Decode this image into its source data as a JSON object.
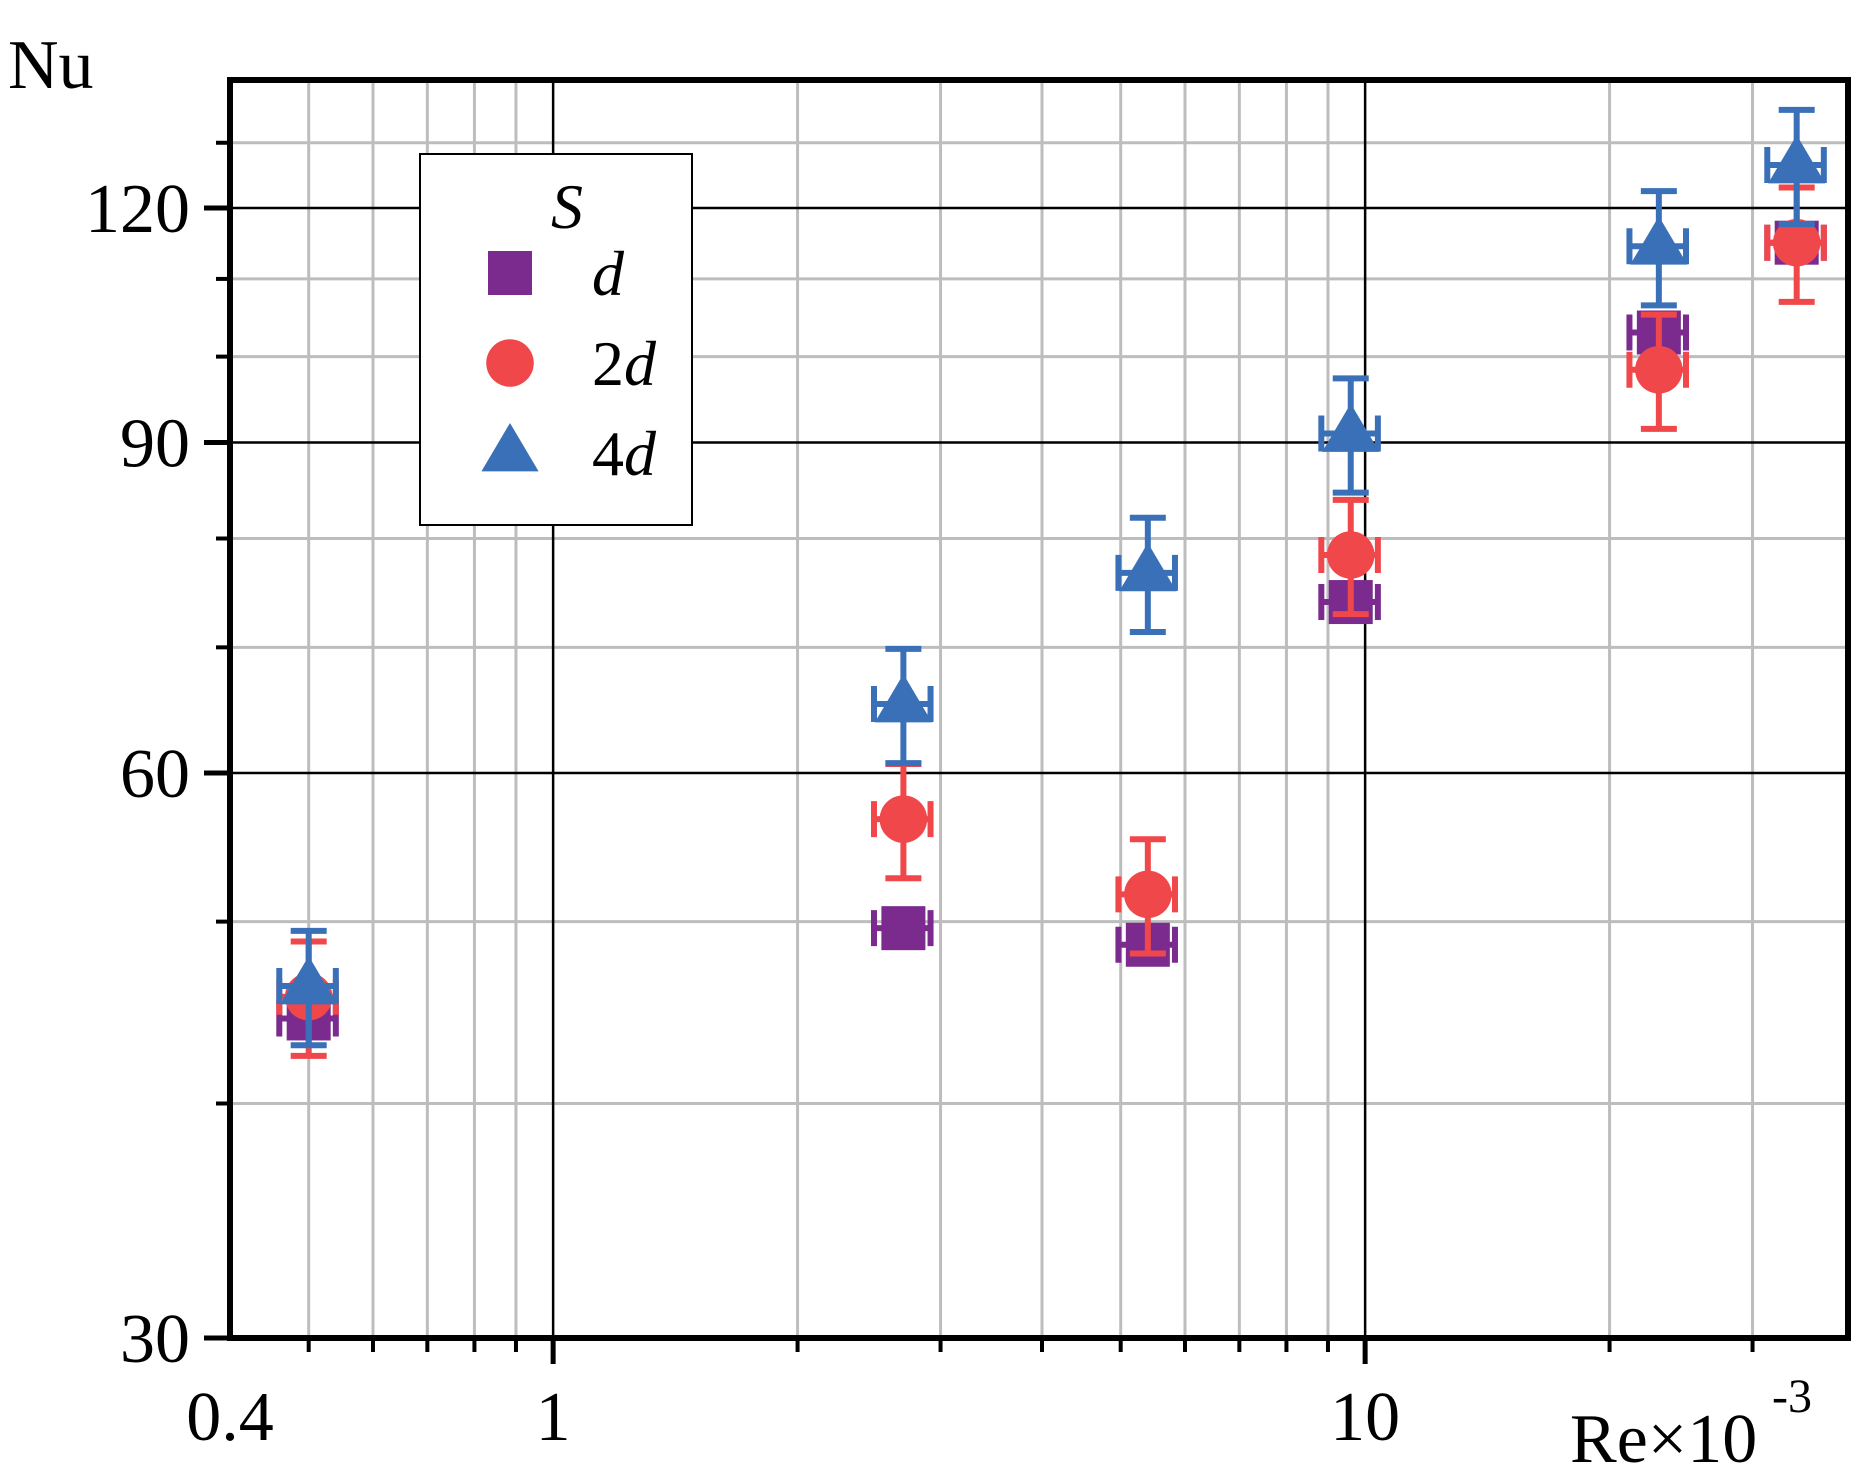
{
  "chart_data": {
    "type": "scatter",
    "title": "",
    "xlabel": "Re×10",
    "xlabel_exponent": "-3",
    "ylabel": "Nu",
    "x_scale": "log",
    "y_scale": "log",
    "xlim": [
      0.4,
      40
    ],
    "ylim": [
      30,
      140
    ],
    "x_ticks": [
      {
        "value": 0.4,
        "label": "0.4"
      },
      {
        "value": 1,
        "label": "1"
      },
      {
        "value": 10,
        "label": "10"
      }
    ],
    "y_ticks": [
      {
        "value": 30,
        "label": "30"
      },
      {
        "value": 60,
        "label": "60"
      },
      {
        "value": 90,
        "label": "90"
      },
      {
        "value": 120,
        "label": "120"
      }
    ],
    "grid": true,
    "legend": {
      "title": "S",
      "placement": "top-left",
      "entries": [
        {
          "prefix": "",
          "italic": "d"
        },
        {
          "prefix": "2",
          "italic": "d"
        },
        {
          "prefix": "4",
          "italic": "d"
        }
      ]
    },
    "series": [
      {
        "name": "d",
        "marker": "square",
        "color": "#7B2A8E",
        "x": [
          0.5,
          2.7,
          5.4,
          9.6,
          23,
          34
        ],
        "y": [
          44.4,
          49.6,
          48.6,
          74,
          103,
          115
        ],
        "xerr_rel": 0.08,
        "yerr_rel": 0.02
      },
      {
        "name": "2d",
        "marker": "circle",
        "color": "#F0474A",
        "x": [
          0.5,
          2.7,
          5.4,
          9.6,
          23,
          34
        ],
        "y": [
          45.6,
          56.7,
          51.7,
          78.4,
          98.4,
          115
        ],
        "xerr_rel": 0.08,
        "yerr_rel": 0.07
      },
      {
        "name": "4d",
        "marker": "triangle",
        "color": "#3A70B8",
        "x": [
          0.5,
          2.7,
          5.4,
          9.6,
          23,
          34
        ],
        "y": [
          46.2,
          65.3,
          76.7,
          91,
          114.5,
          126.5
        ],
        "xerr_rel": 0.08,
        "yerr_rel": 0.07
      }
    ]
  }
}
